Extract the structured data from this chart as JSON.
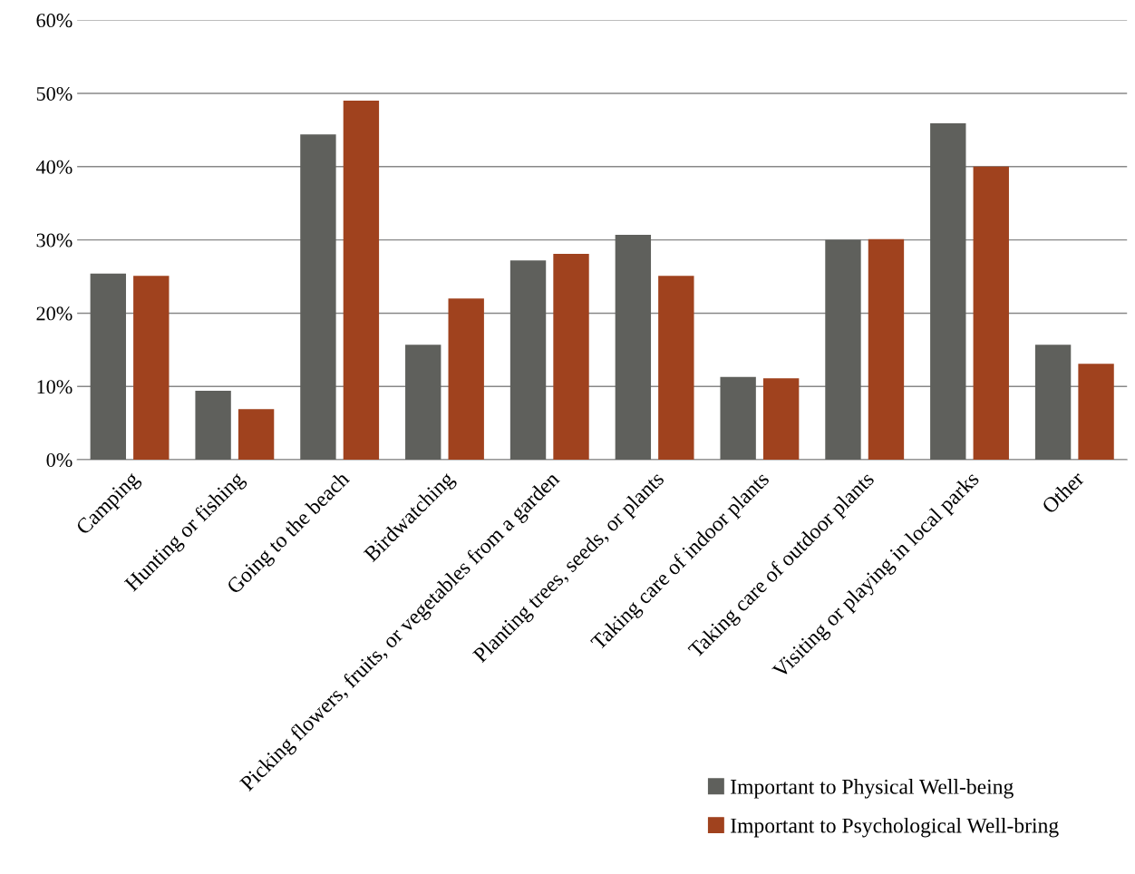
{
  "chart_data": {
    "type": "bar",
    "categories": [
      "Camping",
      "Hunting or fishing",
      "Going to the beach",
      "Birdwatching",
      "Picking flowers, fruits, or vegetables from a garden",
      "Planting trees, seeds, or plants",
      "Taking care of indoor plants",
      "Taking care of outdoor plants",
      "Visiting or playing in local parks",
      "Other"
    ],
    "series": [
      {
        "name": "Important to Physical Well-being",
        "color": "#5f605c",
        "values": [
          25.4,
          9.4,
          44.4,
          15.7,
          27.2,
          30.7,
          11.3,
          30.0,
          45.9,
          15.7
        ]
      },
      {
        "name": "Important to Psychological Well-bring",
        "color": "#a0421e",
        "values": [
          25.1,
          6.9,
          49.0,
          22.0,
          28.1,
          25.1,
          11.1,
          30.1,
          40.0,
          13.1
        ]
      }
    ],
    "ylim": [
      0,
      60
    ],
    "yticks": [
      {
        "value": 0,
        "label": "0%"
      },
      {
        "value": 10,
        "label": "10%"
      },
      {
        "value": 20,
        "label": "20%"
      },
      {
        "value": 30,
        "label": "30%"
      },
      {
        "value": 40,
        "label": "40%"
      },
      {
        "value": 50,
        "label": "50%"
      },
      {
        "value": 60,
        "label": "60%"
      }
    ],
    "grid": "y",
    "legend": "bottom right"
  }
}
